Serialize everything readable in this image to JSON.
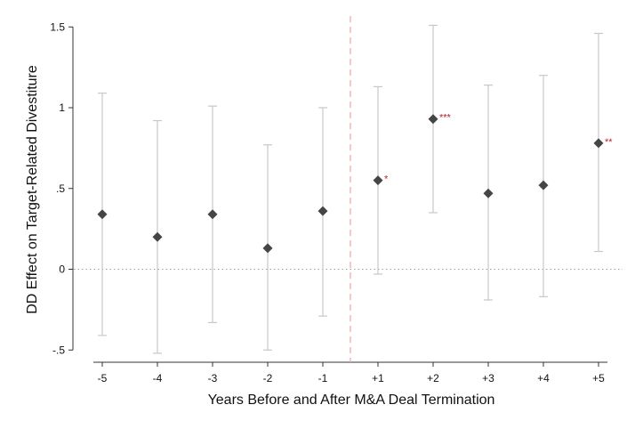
{
  "chart_data": {
    "type": "scatter",
    "subtype": "coefficient-plot-with-confidence-intervals",
    "title": "",
    "xlabel": "Years Before and After M&A Deal Termination",
    "ylabel": "DD Effect on Target-Related Divestiture",
    "categories": [
      "-5",
      "-4",
      "-3",
      "-2",
      "-1",
      "+1",
      "+2",
      "+3",
      "+4",
      "+5"
    ],
    "yticks": [
      -0.5,
      0,
      0.5,
      1,
      1.5
    ],
    "ytick_labels": [
      "-.5",
      "0",
      ".5",
      "1",
      "1.5"
    ],
    "ylim": [
      -0.55,
      1.57
    ],
    "points": [
      {
        "x": "-5",
        "estimate": 0.34,
        "ci_low": -0.41,
        "ci_high": 1.09,
        "sig": ""
      },
      {
        "x": "-4",
        "estimate": 0.2,
        "ci_low": -0.52,
        "ci_high": 0.92,
        "sig": ""
      },
      {
        "x": "-3",
        "estimate": 0.34,
        "ci_low": -0.33,
        "ci_high": 1.01,
        "sig": ""
      },
      {
        "x": "-2",
        "estimate": 0.13,
        "ci_low": -0.5,
        "ci_high": 0.77,
        "sig": ""
      },
      {
        "x": "-1",
        "estimate": 0.36,
        "ci_low": -0.29,
        "ci_high": 1.0,
        "sig": ""
      },
      {
        "x": "+1",
        "estimate": 0.55,
        "ci_low": -0.03,
        "ci_high": 1.13,
        "sig": "*"
      },
      {
        "x": "+2",
        "estimate": 0.93,
        "ci_low": 0.35,
        "ci_high": 1.51,
        "sig": "***"
      },
      {
        "x": "+3",
        "estimate": 0.47,
        "ci_low": -0.19,
        "ci_high": 1.14,
        "sig": ""
      },
      {
        "x": "+4",
        "estimate": 0.52,
        "ci_low": -0.17,
        "ci_high": 1.2,
        "sig": ""
      },
      {
        "x": "+5",
        "estimate": 0.78,
        "ci_low": 0.11,
        "ci_high": 1.46,
        "sig": "**"
      }
    ],
    "reference_line_y": 0,
    "event_line_between": [
      "-1",
      "+1"
    ],
    "grid": false,
    "legend": "none",
    "colors": {
      "marker": "#454545",
      "ci": "#c8c8c8",
      "zero_line": "#a0a0a0",
      "event_line": "#f2a0a0",
      "axis": "#333333",
      "significance": "#c0202a"
    }
  }
}
